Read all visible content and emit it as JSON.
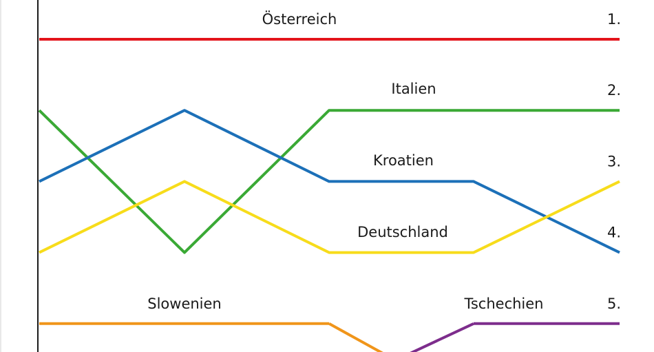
{
  "chart_data": {
    "type": "line",
    "title": "",
    "xlabel": "",
    "ylabel": "",
    "x": [
      1,
      2,
      3,
      4,
      5
    ],
    "y_scale": "rank",
    "ylim": [
      1,
      5
    ],
    "y_inverted": true,
    "rank_labels": [
      "1.",
      "2.",
      "3.",
      "4.",
      "5."
    ],
    "grid": false,
    "series": [
      {
        "name": "Österreich",
        "color": "#e3141b",
        "values": [
          1,
          1,
          1,
          1,
          1
        ]
      },
      {
        "name": "Italien",
        "color": "#3aa935",
        "values": [
          2,
          4,
          2,
          2,
          2
        ]
      },
      {
        "name": "Kroatien",
        "color": "#1c70b8",
        "values": [
          3,
          2,
          3,
          3,
          4
        ]
      },
      {
        "name": "Deutschland",
        "color": "#f7dc1b",
        "values": [
          4,
          3,
          4,
          4,
          3
        ]
      },
      {
        "name": "Slowenien",
        "color": "#f0951a",
        "values": [
          5,
          5,
          5,
          null,
          null
        ]
      },
      {
        "name": "Tschechien",
        "color": "#7d2d8c",
        "values": [
          null,
          null,
          null,
          5,
          5
        ]
      }
    ],
    "annotations": [
      {
        "text": "Österreich"
      },
      {
        "text": "Italien"
      },
      {
        "text": "Kroatien"
      },
      {
        "text": "Deutschland"
      },
      {
        "text": "Slowenien"
      },
      {
        "text": "Tschechien"
      }
    ]
  }
}
